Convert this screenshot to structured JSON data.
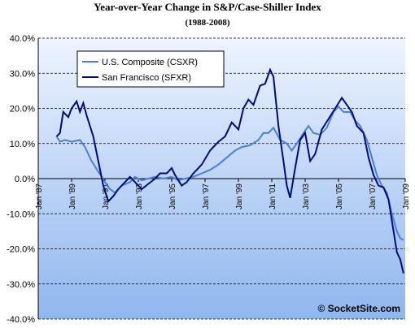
{
  "chart_data": {
    "type": "line",
    "title": "Year-over-Year Change in S&P/Case-Shiller Index",
    "subtitle": "(1988-2008)",
    "annotation": "© SocketSite.com",
    "grid": true,
    "legend": "top-left",
    "xlim": [
      1987,
      2009
    ],
    "xticks": [
      {
        "value": 1987,
        "label": "Jan '87"
      },
      {
        "value": 1989,
        "label": "Jan '89"
      },
      {
        "value": 1991,
        "label": "Jan '91"
      },
      {
        "value": 1993,
        "label": "Jan '93"
      },
      {
        "value": 1995,
        "label": "Jan '95"
      },
      {
        "value": 1997,
        "label": "Jan '97"
      },
      {
        "value": 1999,
        "label": "Jan '99"
      },
      {
        "value": 2001,
        "label": "Jan '01"
      },
      {
        "value": 2003,
        "label": "Jan '03"
      },
      {
        "value": 2005,
        "label": "Jan '05"
      },
      {
        "value": 2007,
        "label": "Jan '07"
      },
      {
        "value": 2009,
        "label": "Jan '09"
      }
    ],
    "ylim": [
      -40,
      40
    ],
    "yticks": [
      {
        "value": -40,
        "label": "-40.0%"
      },
      {
        "value": -30,
        "label": "-30.0%"
      },
      {
        "value": -20,
        "label": "-20.0%"
      },
      {
        "value": -10,
        "label": "-10.0%"
      },
      {
        "value": 0,
        "label": "0.0%"
      },
      {
        "value": 10,
        "label": "10.0%"
      },
      {
        "value": 20,
        "label": "20.0%"
      },
      {
        "value": 30,
        "label": "30.0%"
      },
      {
        "value": 40,
        "label": "40.0%"
      }
    ],
    "series": [
      {
        "name": "U.S. Composite (CSXR)",
        "color": "#4a7fd6",
        "x": [
          1988.1,
          1988.3,
          1988.6,
          1989.0,
          1989.5,
          1989.8,
          1990.2,
          1990.6,
          1991.0,
          1991.3,
          1991.6,
          1992.0,
          1992.5,
          1992.8,
          1993.2,
          1993.6,
          1994.0,
          1994.5,
          1995.0,
          1995.4,
          1995.8,
          1996.3,
          1996.8,
          1997.3,
          1997.8,
          1998.3,
          1998.8,
          1999.2,
          1999.7,
          2000.2,
          2000.5,
          2000.8,
          2001.1,
          2001.5,
          2001.9,
          2002.2,
          2002.5,
          2002.9,
          2003.2,
          2003.5,
          2003.9,
          2004.3,
          2004.7,
          2005.0,
          2005.3,
          2005.7,
          2006.0,
          2006.3,
          2006.7,
          2007.0,
          2007.3,
          2007.6,
          2007.9,
          2008.2,
          2008.5,
          2008.7,
          2008.9
        ],
        "values": [
          12,
          10.5,
          11,
          10.5,
          11,
          9,
          5,
          2,
          -1,
          -3,
          -4,
          -2,
          -1,
          0.5,
          -0.5,
          0,
          0.5,
          0,
          0.5,
          -0.5,
          0,
          0.5,
          1.5,
          2.5,
          4,
          6,
          8,
          9,
          9.5,
          11,
          13,
          13,
          14.5,
          11,
          10,
          8,
          10,
          13,
          15,
          13,
          12.5,
          14.5,
          19,
          20.5,
          19,
          19,
          16.5,
          15,
          11,
          6,
          1,
          -2,
          -4,
          -10,
          -15,
          -17,
          -17.5
        ]
      },
      {
        "name": "San Francisco (SFXR)",
        "color": "#000a78",
        "x": [
          1988.1,
          1988.3,
          1988.5,
          1988.8,
          1989.0,
          1989.3,
          1989.5,
          1989.7,
          1989.9,
          1990.3,
          1990.6,
          1990.9,
          1991.2,
          1991.5,
          1991.8,
          1992.2,
          1992.5,
          1992.8,
          1993.2,
          1993.6,
          1994.0,
          1994.3,
          1994.7,
          1995.0,
          1995.2,
          1995.6,
          1995.9,
          1996.3,
          1996.8,
          1997.3,
          1997.8,
          1998.2,
          1998.6,
          1999.0,
          1999.3,
          1999.6,
          1999.9,
          2000.3,
          2000.6,
          2000.9,
          2001.1,
          2001.4,
          2001.7,
          2001.9,
          2002.1,
          2002.4,
          2002.7,
          2003.0,
          2003.3,
          2003.6,
          2004.0,
          2004.4,
          2004.8,
          2005.2,
          2005.5,
          2005.8,
          2006.1,
          2006.5,
          2006.8,
          2007.1,
          2007.4,
          2007.7,
          2008.0,
          2008.3,
          2008.5,
          2008.7,
          2008.9
        ],
        "values": [
          12,
          13,
          19,
          17.5,
          20,
          22,
          19,
          21.5,
          18,
          12,
          5,
          -2,
          -6.5,
          -5,
          -3,
          -1,
          0.5,
          -1,
          -3,
          -1.5,
          0,
          1.5,
          1.5,
          3,
          1,
          -2,
          -1,
          1.5,
          4,
          8,
          10.5,
          12,
          16,
          14,
          20,
          22.5,
          21,
          26.5,
          27,
          31,
          29,
          15,
          5,
          -2,
          -5.5,
          3,
          11,
          13,
          5,
          7,
          14,
          17,
          20,
          23,
          21,
          19,
          15,
          13,
          6,
          1,
          -2,
          -2.5,
          -6,
          -15,
          -21,
          -23,
          -27
        ]
      }
    ]
  }
}
